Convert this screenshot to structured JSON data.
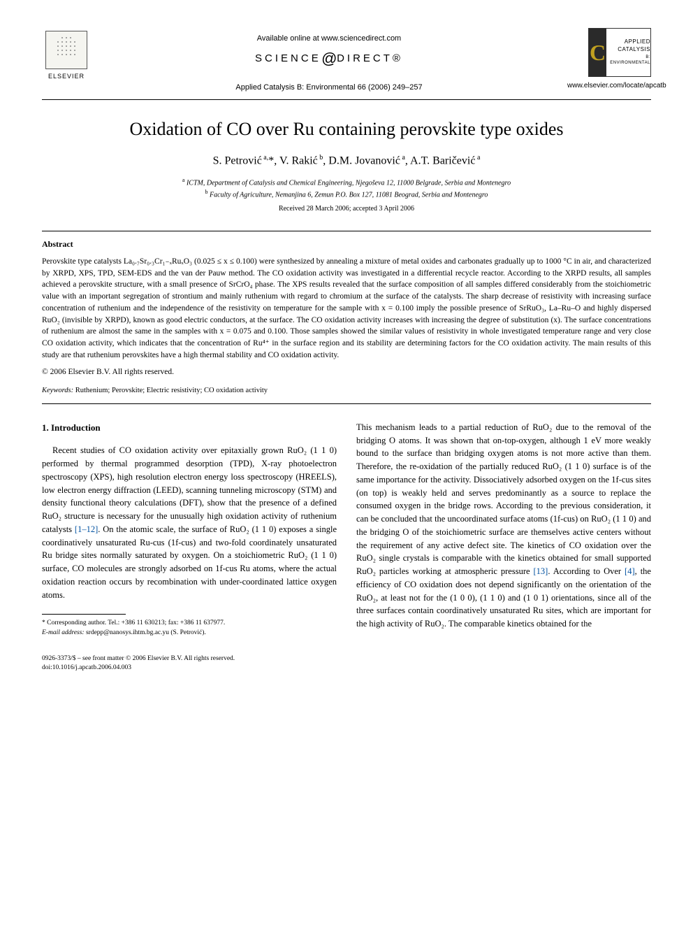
{
  "header": {
    "publisher": "ELSEVIER",
    "available_online": "Available online at www.sciencedirect.com",
    "sciencedirect_prefix": "SCIENCE",
    "sciencedirect_suffix": "DIRECT®",
    "journal_ref": "Applied Catalysis B: Environmental 66 (2006) 249–257",
    "journal_logo_line1": "APPLIED",
    "journal_logo_line2": "CATALYSIS",
    "journal_logo_sub": "B: ENVIRONMENTAL",
    "locate_url": "www.elsevier.com/locate/apcatb"
  },
  "article": {
    "title": "Oxidation of CO over Ru containing perovskite type oxides",
    "authors_html": "S. Petrović <sup>a,</sup>*, V. Rakić <sup>b</sup>, D.M. Jovanović <sup>a</sup>, A.T. Baričević <sup>a</sup>",
    "affil_a": "ICTM, Department of Catalysis and Chemical Engineering, Njegoševa 12, 11000 Belgrade, Serbia and Montenegro",
    "affil_b": "Faculty of Agriculture, Nemanjina 6, Zemun P.O. Box 127, 11081 Beograd, Serbia and Montenegro",
    "dates": "Received 28 March 2006; accepted 3 April 2006"
  },
  "abstract": {
    "heading": "Abstract",
    "body": "Perovskite type catalysts La₀.₇Sr₀.₃Cr₁₋ₓRuₓO₃ (0.025 ≤ x ≤ 0.100) were synthesized by annealing a mixture of metal oxides and carbonates gradually up to 1000 °C in air, and characterized by XRPD, XPS, TPD, SEM-EDS and the van der Pauw method. The CO oxidation activity was investigated in a differential recycle reactor. According to the XRPD results, all samples achieved a perovskite structure, with a small presence of SrCrO₄ phase. The XPS results revealed that the surface composition of all samples differed considerably from the stoichiometric value with an important segregation of strontium and mainly ruthenium with regard to chromium at the surface of the catalysts. The sharp decrease of resistivity with increasing surface concentration of ruthenium and the independence of the resistivity on temperature for the sample with x = 0.100 imply the possible presence of SrRuO₃, La–Ru–O and highly dispersed RuO₂ (invisible by XRPD), known as good electric conductors, at the surface. The CO oxidation activity increases with increasing the degree of substitution (x). The surface concentrations of ruthenium are almost the same in the samples with x = 0.075 and 0.100. Those samples showed the similar values of resistivity in whole investigated temperature range and very close CO oxidation activity, which indicates that the concentration of Ru⁴⁺ in the surface region and its stability are determining factors for the CO oxidation activity. The main results of this study are that ruthenium perovskites have a high thermal stability and CO oxidation activity.",
    "copyright": "© 2006 Elsevier B.V. All rights reserved.",
    "keywords_label": "Keywords:",
    "keywords": " Ruthenium; Perovskite; Electric resistivity; CO oxidation activity"
  },
  "body": {
    "section_heading": "1. Introduction",
    "col1_para": "Recent studies of CO oxidation activity over epitaxially grown RuO₂ (1 1 0) performed by thermal programmed desorption (TPD), X-ray photoelectron spectroscopy (XPS), high resolution electron energy loss spectroscopy (HREELS), low electron energy diffraction (LEED), scanning tunneling microscopy (STM) and density functional theory calculations (DFT), show that the presence of a defined RuO₂ structure is necessary for the unusually high oxidation activity of ruthenium catalysts ",
    "ref1": "[1–12]",
    "col1_para_cont": ". On the atomic scale, the surface of RuO₂ (1 1 0) exposes a single coordinatively unsaturated Ru-cus (1f-cus) and two-fold coordinately unsaturated Ru bridge sites normally saturated by oxygen. On a stoichiometric RuO₂ (1 1 0) surface, CO molecules are strongly adsorbed on 1f-cus Ru atoms, where the actual oxidation reaction occurs by recombination with under-coordinated lattice oxygen atoms.",
    "col2_para_a": "This mechanism leads to a partial reduction of RuO₂ due to the removal of the bridging O atoms. It was shown that on-top-oxygen, although 1 eV more weakly bound to the surface than bridging oxygen atoms is not more active than them. Therefore, the re-oxidation of the partially reduced RuO₂ (1 1 0) surface is of the same importance for the activity. Dissociatively adsorbed oxygen on the 1f-cus sites (on top) is weakly held and serves predominantly as a source to replace the consumed oxygen in the bridge rows. According to the previous consideration, it can be concluded that the uncoordinated surface atoms (1f-cus) on RuO₂ (1 1 0) and the bridging O of the stoichiometric surface are themselves active centers without the requirement of any active defect site. The kinetics of CO oxidation over the RuO₂ single crystals is comparable with the kinetics obtained for small supported RuO₂ particles working at atmospheric pressure ",
    "ref2": "[13]",
    "col2_para_b": ". According to Over ",
    "ref3": "[4]",
    "col2_para_c": ", the efficiency of CO oxidation does not depend significantly on the orientation of the RuO₂, at least not for the (1 0 0), (1 1 0) and (1 0 1) orientations, since all of the three surfaces contain coordinatively unsaturated Ru sites, which are important for the high activity of RuO₂. The comparable kinetics obtained for the"
  },
  "footnotes": {
    "corresponding": "* Corresponding author. Tel.: +386 11 630213; fax: +386 11 637977.",
    "email_label": "E-mail address:",
    "email": " srdepp@nanosys.ihtm.bg.ac.yu (S. Petrović)."
  },
  "footer": {
    "line1": "0926-3373/$ – see front matter © 2006 Elsevier B.V. All rights reserved.",
    "line2": "doi:10.1016/j.apcatb.2006.04.003"
  },
  "colors": {
    "text": "#000000",
    "link": "#0050a0",
    "background": "#ffffff"
  }
}
